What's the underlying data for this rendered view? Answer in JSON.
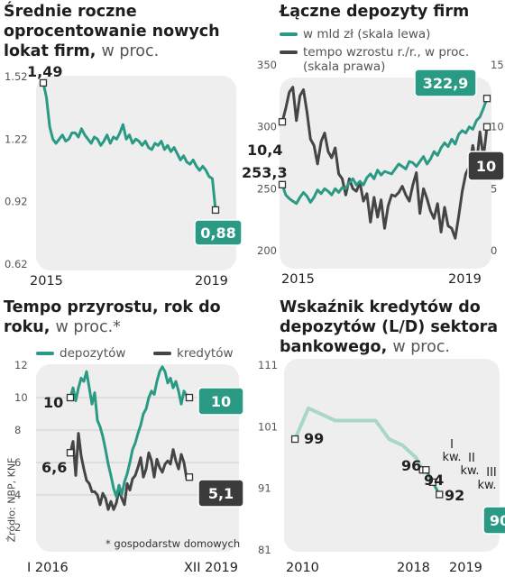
{
  "source": "Źródło: NBP, KNF",
  "colors": {
    "deposits": "#2a9a84",
    "loans": "#454545",
    "light": "#a8d6cb",
    "plot_bg": "#eeeeee",
    "box_teal": "#2a9a84",
    "box_dark": "#3b3b3b"
  },
  "chart_data": [
    {
      "type": "line",
      "title_bold": "Średnie roczne oprocentowanie nowych lokat firm,",
      "title_normal": "w proc.",
      "ylim": [
        0.62,
        1.52
      ],
      "yticks": [
        "1.52",
        "1.22",
        "0.92",
        "0.62"
      ],
      "xticks": [
        "2015",
        "2019"
      ],
      "x": "monthly 2015-01 to 2019-06",
      "series": [
        {
          "values": [
            1.49,
            1.42,
            1.28,
            1.22,
            1.2,
            1.22,
            1.24,
            1.21,
            1.22,
            1.25,
            1.25,
            1.23,
            1.27,
            1.24,
            1.22,
            1.2,
            1.23,
            1.22,
            1.19,
            1.21,
            1.24,
            1.2,
            1.23,
            1.22,
            1.25,
            1.29,
            1.22,
            1.24,
            1.2,
            1.22,
            1.21,
            1.19,
            1.21,
            1.18,
            1.17,
            1.2,
            1.19,
            1.21,
            1.17,
            1.19,
            1.16,
            1.18,
            1.15,
            1.12,
            1.14,
            1.11,
            1.1,
            1.12,
            1.09,
            1.07,
            1.09,
            1.07,
            1.04,
            1.03,
            0.88
          ]
        }
      ],
      "labels": {
        "start": "1,49",
        "end": "0,88"
      }
    },
    {
      "type": "line",
      "title_bold": "Łączne depozyty firm",
      "title_normal": "",
      "legend": [
        "w mld zł (skala lewa)",
        "tempo wzrostu r./r., w proc. (skala prawa)"
      ],
      "ylim_left": [
        200,
        350
      ],
      "ylim_right": [
        0,
        15
      ],
      "yticks_left": [
        "350",
        "300",
        "250",
        "200"
      ],
      "yticks_right": [
        "15",
        "10",
        "5",
        "0"
      ],
      "xticks": [
        "2015",
        "2019"
      ],
      "x": "monthly 2014-11 to 2019-09",
      "series": [
        {
          "name": "w mld zł (skala lewa)",
          "axis": "left",
          "values": [
            253.3,
            245,
            242,
            240,
            238,
            243,
            247,
            244,
            239,
            243,
            249,
            246,
            250,
            248,
            245,
            250,
            247,
            251,
            250,
            255,
            258,
            253,
            256,
            253,
            259,
            262,
            258,
            265,
            261,
            264,
            263,
            262,
            266,
            270,
            268,
            266,
            272,
            271,
            268,
            272,
            276,
            270,
            274,
            280,
            277,
            283,
            287,
            284,
            290,
            286,
            294,
            297,
            295,
            300,
            298,
            305,
            308,
            315,
            322.9
          ]
        },
        {
          "name": "tempo wzrostu r./r., w proc. (skala prawa)",
          "axis": "right",
          "values": [
            10.4,
            11.5,
            12.8,
            13.2,
            10.5,
            12.5,
            13.0,
            11.2,
            9.0,
            8.5,
            7.0,
            8.8,
            9.5,
            8.0,
            7.5,
            8.3,
            6.2,
            5.8,
            4.5,
            5.8,
            5.0,
            4.8,
            5.5,
            4.0,
            4.6,
            2.3,
            4.3,
            2.7,
            4.1,
            1.8,
            3.6,
            4.5,
            4.4,
            4.7,
            5.2,
            4.5,
            4.0,
            5.3,
            6.3,
            3.0,
            5.0,
            4.2,
            3.2,
            2.6,
            3.8,
            1.5,
            3.5,
            2.0,
            1.8,
            1.0,
            2.8,
            4.8,
            6.2,
            6.8,
            8.5,
            6.9,
            9.6,
            7.5,
            10.0
          ]
        }
      ],
      "labels": {
        "left_start": "253,3",
        "right_start": "10,4",
        "left_end": "322,9",
        "right_end": "10"
      }
    },
    {
      "type": "line",
      "title_bold": "Tempo przyrostu, rok do roku,",
      "title_normal": "w proc.*",
      "legend": [
        "depozytów",
        "kredytów"
      ],
      "note": "* gospodarstw domowych",
      "ylim": [
        2,
        12
      ],
      "yticks": [
        "12",
        "10",
        "8",
        "6",
        "4",
        "2"
      ],
      "xticks": [
        "I 2016",
        "XII 2019"
      ],
      "x": "monthly 2016-01 to 2019-12",
      "series": [
        {
          "name": "depozytów",
          "values": [
            10.0,
            10.6,
            9.8,
            10.6,
            11.2,
            11.0,
            11.6,
            10.6,
            9.6,
            10.3,
            8.6,
            8.2,
            7.6,
            6.8,
            5.9,
            5.2,
            4.4,
            3.9,
            4.6,
            4.0,
            4.8,
            5.3,
            6.0,
            6.8,
            7.2,
            7.8,
            8.3,
            9.0,
            9.3,
            10.0,
            10.4,
            10.2,
            11.0,
            11.6,
            11.9,
            11.6,
            10.9,
            11.2,
            10.6,
            11.0,
            10.4,
            9.6,
            10.4,
            10.1,
            10.0
          ]
        },
        {
          "name": "kredytów",
          "values": [
            6.6,
            7.3,
            5.2,
            7.8,
            6.4,
            5.6,
            4.9,
            4.7,
            4.2,
            4.2,
            4.0,
            3.4,
            4.1,
            3.8,
            3.1,
            3.6,
            3.1,
            3.5,
            4.3,
            3.8,
            3.4,
            4.7,
            4.3,
            5.0,
            5.2,
            5.7,
            6.3,
            5.1,
            5.6,
            6.6,
            6.1,
            5.1,
            6.2,
            5.7,
            5.4,
            5.9,
            6.1,
            5.9,
            6.8,
            6.1,
            5.6,
            6.5,
            6.0,
            5.0,
            5.1
          ]
        }
      ],
      "labels": {
        "dep_start": "10",
        "loan_start": "6,6",
        "dep_end": "10",
        "loan_end": "5,1"
      }
    },
    {
      "type": "line",
      "title_bold": "Wskaźnik kredytów do depozytów (L/D) sektora bankowego,",
      "title_normal": "w proc.",
      "ylim": [
        81,
        111
      ],
      "yticks": [
        "111",
        "101",
        "91",
        "81"
      ],
      "xticks": [
        "2010",
        "2018",
        "2019"
      ],
      "series": [
        {
          "name": "historical",
          "x": [
            2009.0,
            2010.0,
            2011.0,
            2012.0,
            2013.0,
            2014.0,
            2015.0,
            2016.0,
            2017.0,
            2018.0,
            2018.5
          ],
          "values": [
            99,
            104,
            103,
            102,
            102,
            102,
            102,
            99,
            98,
            96,
            94
          ]
        },
        {
          "name": "quarterly",
          "x": [
            2018.5,
            2018.75,
            2019.0,
            2019.25,
            2019.5,
            2019.75
          ],
          "values": [
            94,
            94,
            93,
            92,
            91,
            90
          ]
        }
      ],
      "labels": {
        "start": "99",
        "q1": "96",
        "q2": "94",
        "q3": "92",
        "end": "90",
        "q1_name": "I kw.",
        "q2_name": "II kw.",
        "q3_name": "III kw."
      }
    }
  ]
}
